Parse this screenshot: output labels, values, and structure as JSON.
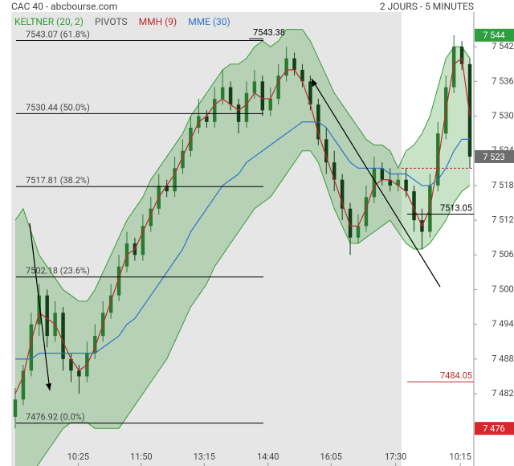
{
  "header": {
    "title": "CAC 40 - abcbourse.com",
    "period": "2 JOURS - 5 MINUTES"
  },
  "chart_data": {
    "type": "candlestick",
    "xlim": [
      -0.5,
      57.5
    ],
    "xticks": [
      {
        "value": 7.9,
        "label": "10:25"
      },
      {
        "value": 15.8,
        "label": "11:50"
      },
      {
        "value": 23.7,
        "label": "13:15"
      },
      {
        "value": 31.7,
        "label": "14:40"
      },
      {
        "value": 39.6,
        "label": "16:05"
      },
      {
        "value": 47.7,
        "label": "17:30"
      },
      {
        "value": 55.8,
        "label": "10:15"
      }
    ],
    "ylim": [
      7469.5,
      7548
    ],
    "yticks": [
      {
        "value": 7542,
        "label": "7 542"
      },
      {
        "value": 7536,
        "label": "7 536"
      },
      {
        "value": 7530,
        "label": "7 530"
      },
      {
        "value": 7524,
        "label": "7 524"
      },
      {
        "value": 7518,
        "label": "7 518"
      },
      {
        "value": 7512,
        "label": "7 512"
      },
      {
        "value": 7506,
        "label": "7 506"
      },
      {
        "value": 7500,
        "label": "7 500"
      },
      {
        "value": 7494,
        "label": "7 494"
      },
      {
        "value": 7488,
        "label": "7 488"
      },
      {
        "value": 7482,
        "label": "7 482"
      },
      {
        "value": 7476,
        "label": "7 476"
      }
    ],
    "grid": false,
    "up_color": "#2a7a30",
    "down_color": "#123f18",
    "open": [
      7478,
      7481,
      7486,
      7494,
      7499,
      7492,
      7496,
      7488,
      7486,
      7485,
      7489,
      7492,
      7496,
      7499,
      7504,
      7508,
      7506,
      7511,
      7514,
      7518,
      7517,
      7521,
      7524,
      7528,
      7530,
      7529,
      7533,
      7535,
      7532,
      7529,
      7534,
      7536,
      7531,
      7533,
      7537,
      7540,
      7538,
      7536,
      7532,
      7526,
      7522,
      7519,
      7514,
      7509,
      7511,
      7516,
      7521,
      7519,
      7518,
      7519,
      7517,
      7512,
      7510,
      7518,
      7527,
      7535,
      7542,
      7539
    ],
    "high": [
      7483,
      7487,
      7496,
      7501,
      7500,
      7498,
      7497,
      7489,
      7487,
      7491,
      7494,
      7498,
      7501,
      7506,
      7510,
      7509,
      7513,
      7516,
      7520,
      7519,
      7523,
      7526,
      7530,
      7533,
      7531,
      7535,
      7538,
      7536,
      7533,
      7536,
      7538,
      7537,
      7535,
      7539,
      7542,
      7541,
      7539,
      7537,
      7533,
      7528,
      7524,
      7520,
      7515,
      7513,
      7518,
      7523,
      7522,
      7521,
      7520,
      7521,
      7518,
      7514,
      7520,
      7529,
      7537,
      7544,
      7543,
      7540
    ],
    "low": [
      7476,
      7480,
      7485,
      7492,
      7490,
      7491,
      7486,
      7484,
      7482,
      7484,
      7488,
      7491,
      7495,
      7498,
      7503,
      7505,
      7505,
      7510,
      7513,
      7516,
      7516,
      7520,
      7523,
      7527,
      7528,
      7528,
      7532,
      7531,
      7527,
      7528,
      7533,
      7530,
      7530,
      7532,
      7536,
      7537,
      7535,
      7531,
      7525,
      7520,
      7517,
      7512,
      7506,
      7508,
      7510,
      7515,
      7518,
      7517,
      7517,
      7516,
      7510,
      7507,
      7509,
      7517,
      7526,
      7534,
      7538,
      7521
    ],
    "close": [
      7481,
      7486,
      7494,
      7499,
      7492,
      7496,
      7488,
      7486,
      7485,
      7489,
      7492,
      7496,
      7499,
      7504,
      7508,
      7506,
      7511,
      7514,
      7518,
      7517,
      7521,
      7524,
      7528,
      7530,
      7529,
      7533,
      7535,
      7532,
      7529,
      7534,
      7536,
      7531,
      7533,
      7537,
      7540,
      7538,
      7536,
      7532,
      7526,
      7522,
      7519,
      7514,
      7509,
      7511,
      7516,
      7521,
      7519,
      7518,
      7519,
      7517,
      7512,
      7510,
      7518,
      7527,
      7535,
      7542,
      7539,
      7523
    ],
    "series": [
      {
        "name": "KELTNER (20, 2)",
        "color": "#3a9a3a",
        "upper": [
          7512,
          7514,
          7510,
          7506,
          7504,
          7502,
          7500,
          7499,
          7498,
          7498,
          7500,
          7503,
          7506,
          7509,
          7512,
          7514,
          7516,
          7519,
          7521,
          7523,
          7525,
          7527,
          7530,
          7532,
          7534,
          7536,
          7538,
          7539,
          7539,
          7540,
          7542,
          7543,
          7542,
          7543,
          7545,
          7545,
          7545,
          7543,
          7540,
          7537,
          7534,
          7532,
          7530,
          7528,
          7526,
          7525,
          7525,
          7524,
          7521,
          7524,
          7525,
          7527,
          7530,
          7535,
          7540,
          7542,
          7542,
          7540
        ],
        "lower": [
          7466,
          7466,
          7468,
          7470,
          7472,
          7474,
          7476,
          7477,
          7477,
          7477,
          7476,
          7476,
          7476,
          7476,
          7478,
          7480,
          7482,
          7484,
          7486,
          7488,
          7491,
          7494,
          7497,
          7499,
          7501,
          7504,
          7506,
          7508,
          7510,
          7512,
          7514,
          7515,
          7516,
          7518,
          7520,
          7522,
          7524,
          7524,
          7522,
          7518,
          7514,
          7511,
          7508,
          7508,
          7509,
          7510,
          7511,
          7512,
          7510,
          7508,
          7507,
          7507,
          7508,
          7510,
          7512,
          7515,
          7517,
          7518
        ]
      },
      {
        "name": "PIVOTS",
        "color": "#555555",
        "levels": [
          7543.38,
          7513.05,
          7484.05
        ],
        "level_colors": [
          "#000000",
          "#000000",
          "#c0282d"
        ]
      },
      {
        "name": "MMH (9)",
        "color": "#c0282d",
        "values": [
          7482,
          7485,
          7491,
          7496,
          7495,
          7494,
          7491,
          7488,
          7486,
          7487,
          7490,
          7494,
          7498,
          7502,
          7506,
          7507,
          7510,
          7513,
          7516,
          7518,
          7520,
          7523,
          7526,
          7529,
          7530,
          7532,
          7533,
          7532,
          7531,
          7532,
          7534,
          7533,
          7533,
          7536,
          7538,
          7538,
          7536,
          7532,
          7527,
          7523,
          7519,
          7515,
          7511,
          7511,
          7514,
          7518,
          7519,
          7519,
          7518,
          7517,
          7514,
          7511,
          7514,
          7522,
          7531,
          7539,
          7540,
          7530
        ]
      },
      {
        "name": "MME (30)",
        "color": "#2f73c9",
        "values": [
          7488,
          7488,
          7488,
          7489,
          7489,
          7489,
          7489,
          7489,
          7489,
          7489,
          7489,
          7490,
          7491,
          7492,
          7494,
          7495,
          7497,
          7499,
          7501,
          7503,
          7505,
          7507,
          7510,
          7512,
          7514,
          7516,
          7518,
          7519,
          7520,
          7522,
          7523,
          7524,
          7525,
          7526,
          7527,
          7528,
          7529,
          7529,
          7529,
          7528,
          7526,
          7524,
          7522,
          7521,
          7521,
          7521,
          7521,
          7520,
          7520,
          7520,
          7519,
          7518,
          7518,
          7519,
          7521,
          7524,
          7526,
          7526
        ]
      }
    ],
    "retracements": [
      {
        "value": 7543.07,
        "label": "7543.07  (61.8%)"
      },
      {
        "value": 7530.44,
        "label": "7530.44  (50.0%)"
      },
      {
        "value": 7517.81,
        "label": "7517.81  (38.2%)"
      },
      {
        "value": 7502.18,
        "label": "7502.18  (23.6%)"
      },
      {
        "value": 7476.92,
        "label": "7476.92  (0.0%)"
      }
    ],
    "previous_close": 7521,
    "price_markers": [
      {
        "value": 7544,
        "label": "7 544",
        "color": "#2e9e3e"
      },
      {
        "value": 7523,
        "label": "7 523",
        "color": "#6d6d6d"
      },
      {
        "value": 7476,
        "label": "7 476",
        "color": "#d9252b"
      }
    ]
  }
}
